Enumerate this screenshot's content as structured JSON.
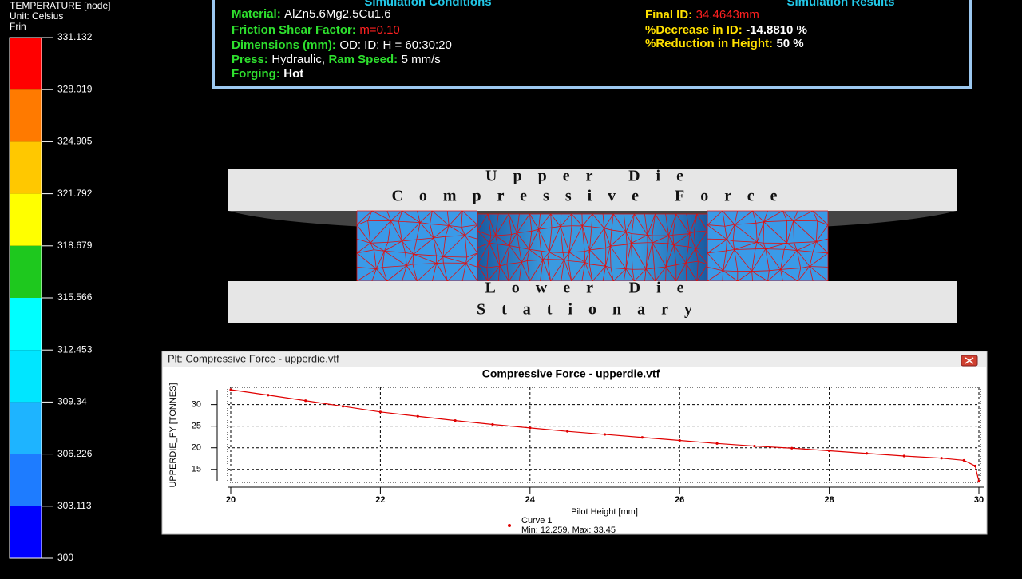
{
  "legend": {
    "title": "TEMPERATURE [node]",
    "unit": "Unit: Celsius",
    "label": "Frin",
    "levels": [
      331.132,
      328.019,
      324.905,
      321.792,
      318.679,
      315.566,
      312.453,
      309.34,
      306.226,
      303.113,
      300
    ],
    "colors": [
      "#ff0000",
      "#ff7a00",
      "#ffc800",
      "#ffff00",
      "#1ec81e",
      "#00ffff",
      "#00e6ff",
      "#1eb4ff",
      "#1e7cff",
      "#0000ff"
    ]
  },
  "conditions": {
    "title": "Simulation Conditions",
    "rows": [
      [
        "Material:",
        "AlZn5.6Mg2.5Cu1.6"
      ],
      [
        "Friction Shear Factor:",
        "m=0.10"
      ],
      [
        "Dimensions (mm):",
        "OD: ID: H = 60:30:20"
      ],
      [
        "Press:",
        "Hydraulic,",
        "Ram Speed:",
        "5 mm/s"
      ],
      [
        "Forging:",
        "Hot"
      ]
    ]
  },
  "results": {
    "title": "Simulation Results",
    "rows": [
      [
        "Final ID:",
        "34.4643mm"
      ],
      [
        "%Decrease in ID:",
        "-14.8810 %"
      ],
      [
        "%Reduction in Height:",
        "50 %"
      ]
    ]
  },
  "dies": {
    "upper": [
      "Upper Die",
      "Compressive Force"
    ],
    "lower": [
      "Lower Die",
      "Stationary"
    ]
  },
  "window": {
    "title": "Plt: Compressive Force - upperdie.vtf"
  },
  "chart_data": {
    "type": "line",
    "title": "Compressive Force - upperdie.vtf",
    "x_label": "Pilot Height [mm]",
    "y_label": "UPPERDIE_FY [TONNES]",
    "x": [
      20,
      20.5,
      21,
      21.5,
      22,
      22.5,
      23,
      23.5,
      24,
      24.5,
      25,
      25.5,
      26,
      26.5,
      27,
      27.5,
      28,
      28.5,
      29,
      29.5,
      29.8,
      29.95,
      30
    ],
    "series": [
      {
        "name": "Curve 1",
        "color": "#e00000",
        "values": [
          33.45,
          32.2,
          30.9,
          29.6,
          28.3,
          27.3,
          26.3,
          25.4,
          24.6,
          23.8,
          23.1,
          22.4,
          21.7,
          21.0,
          20.4,
          19.9,
          19.3,
          18.7,
          18.1,
          17.6,
          17.1,
          15.8,
          12.259
        ]
      }
    ],
    "xlim": [
      20,
      30
    ],
    "xticks": [
      20,
      22,
      24,
      26,
      28,
      30
    ],
    "ylim": [
      12,
      34
    ],
    "yticks": [
      15,
      20,
      25,
      30
    ],
    "grid": true,
    "annotation": "Min: 12.259, Max: 33.45"
  }
}
